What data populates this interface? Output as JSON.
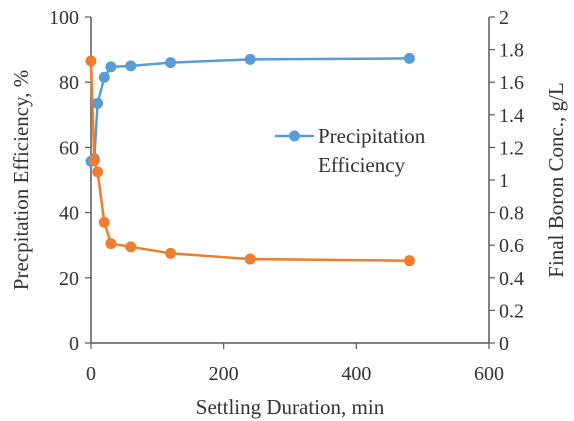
{
  "chart_data": {
    "type": "line",
    "xlabel": "Settling Duration, min",
    "ylabel": "Precpitation Efficiency, %",
    "y2label": "Final Boron Conc., g/L",
    "xlim": [
      0,
      600
    ],
    "ylim": [
      0,
      100
    ],
    "y2lim": [
      0,
      2
    ],
    "xticks": [
      "0",
      "200",
      "400",
      "600"
    ],
    "yticks": [
      "0",
      "20",
      "40",
      "60",
      "80",
      "100"
    ],
    "y2ticks": [
      "0",
      "0.2",
      "0.4",
      "0.6",
      "0.8",
      "1",
      "1.2",
      "1.4",
      "1.6",
      "1.8",
      "2"
    ],
    "grid": false,
    "legend": {
      "position": "center-right",
      "lines": [
        "Precipitation",
        "Efficiency"
      ]
    },
    "series": [
      {
        "name": "Precipitation Efficiency",
        "axis": "left",
        "color": "#5B9BD5",
        "x": [
          0,
          5,
          10,
          20,
          30,
          60,
          120,
          240,
          480
        ],
        "y": [
          55.7,
          56.5,
          73.5,
          81.5,
          84.7,
          85.0,
          86.0,
          87.0,
          87.3
        ]
      },
      {
        "name": "Final Boron Conc.",
        "axis": "right",
        "color": "#ED7D31",
        "x": [
          0,
          5,
          10,
          20,
          30,
          60,
          120,
          240,
          480
        ],
        "y": [
          1.73,
          1.12,
          1.05,
          0.74,
          0.61,
          0.59,
          0.55,
          0.515,
          0.505
        ]
      }
    ]
  }
}
